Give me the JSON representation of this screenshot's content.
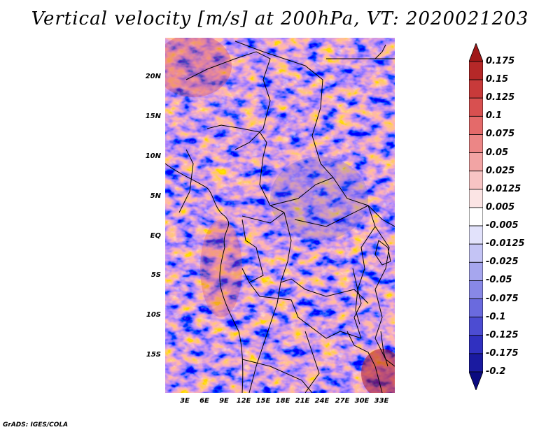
{
  "title": "Vertical velocity [m/s] at 200hPa, VT: 2020021203",
  "credit": "GrADS: IGES/COLA",
  "map": {
    "region": "Central Africa",
    "lat_labels": [
      "20N",
      "15N",
      "10N",
      "5N",
      "EQ",
      "5S",
      "10S",
      "15S"
    ],
    "lon_labels": [
      "3E",
      "6E",
      "9E",
      "12E",
      "15E",
      "18E",
      "21E",
      "24E",
      "27E",
      "30E",
      "33E"
    ]
  },
  "colorbar": {
    "labels": [
      "0.175",
      "0.15",
      "0.125",
      "0.1",
      "0.075",
      "0.05",
      "0.025",
      "0.0125",
      "0.005",
      "-0.005",
      "-0.0125",
      "-0.025",
      "-0.05",
      "-0.075",
      "-0.1",
      "-0.125",
      "-0.175",
      "-0.2"
    ],
    "colors": [
      "#a01818",
      "#b52828",
      "#c83a3a",
      "#d85050",
      "#e46a6a",
      "#ec8686",
      "#f2a4a4",
      "#f7c4c4",
      "#fbe4e4",
      "#ffffff",
      "#e2e2fb",
      "#c4c4f5",
      "#a6a6ee",
      "#8888e6",
      "#6a6ade",
      "#4c4cd2",
      "#3030c0",
      "#1a1aa0",
      "#0a0a80"
    ]
  },
  "colors": {
    "positive": "#d65050",
    "negative": "#5050d0",
    "border": "#000000"
  }
}
